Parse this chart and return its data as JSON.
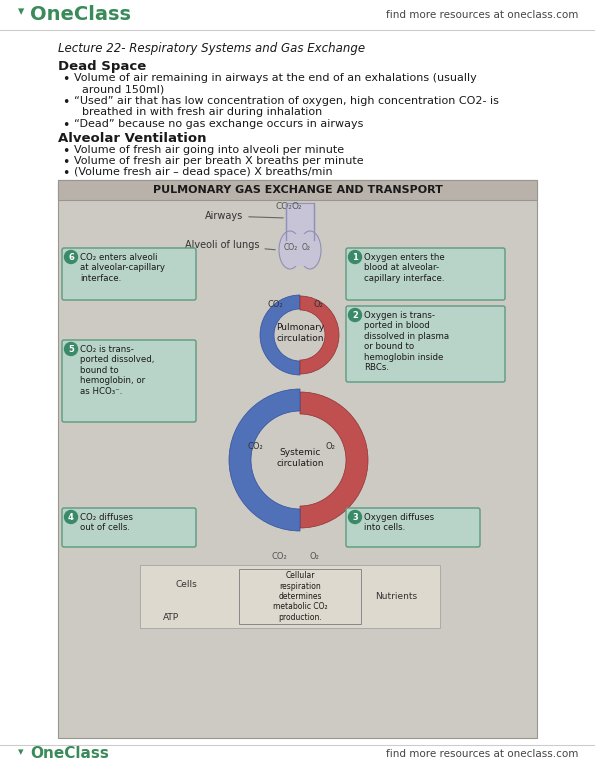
{
  "page_width": 5.95,
  "page_height": 7.7,
  "bg_color": "#ffffff",
  "logo_color": "#3a8a5a",
  "header_right": "find more resources at oneclass.com",
  "lecture_title": "Lecture 22- Respiratory Systems and Gas Exchange",
  "section1_title": "Dead Space",
  "bullet1_1": "Volume of air remaining in airways at the end of an exhalations (usually\n    around 150ml)",
  "bullet1_2": "“Used” air that has low concentration of oxygen, high concentration CO2- is\n    breathed in with fresh air during inhalation",
  "bullet1_3": "“Dead” because no gas exchange occurs in airways",
  "section2_title": "Alveolar Ventilation",
  "bullet2_1": "Volume of fresh air going into alveoli per minute",
  "bullet2_2": "Volume of fresh air per breath X breaths per minute",
  "bullet2_3": "(Volume fresh air – dead space) X breaths/min",
  "diagram_title": "PULMONARY GAS EXCHANGE AND TRANSPORT",
  "diagram_bg": "#cdc9c3",
  "diagram_titlebar": "#b8b2ab",
  "box_color": "#b8d4c8",
  "box_edge": "#5a9a80",
  "circ_color": "#3a8a6a",
  "red_color": "#c05050",
  "blue_color": "#5070b8",
  "trachea_color": "#c8c4d8",
  "trachea_edge": "#9090b8",
  "text_dark": "#1a1a1a",
  "text_gray": "#444444",
  "text_label": "#333333"
}
